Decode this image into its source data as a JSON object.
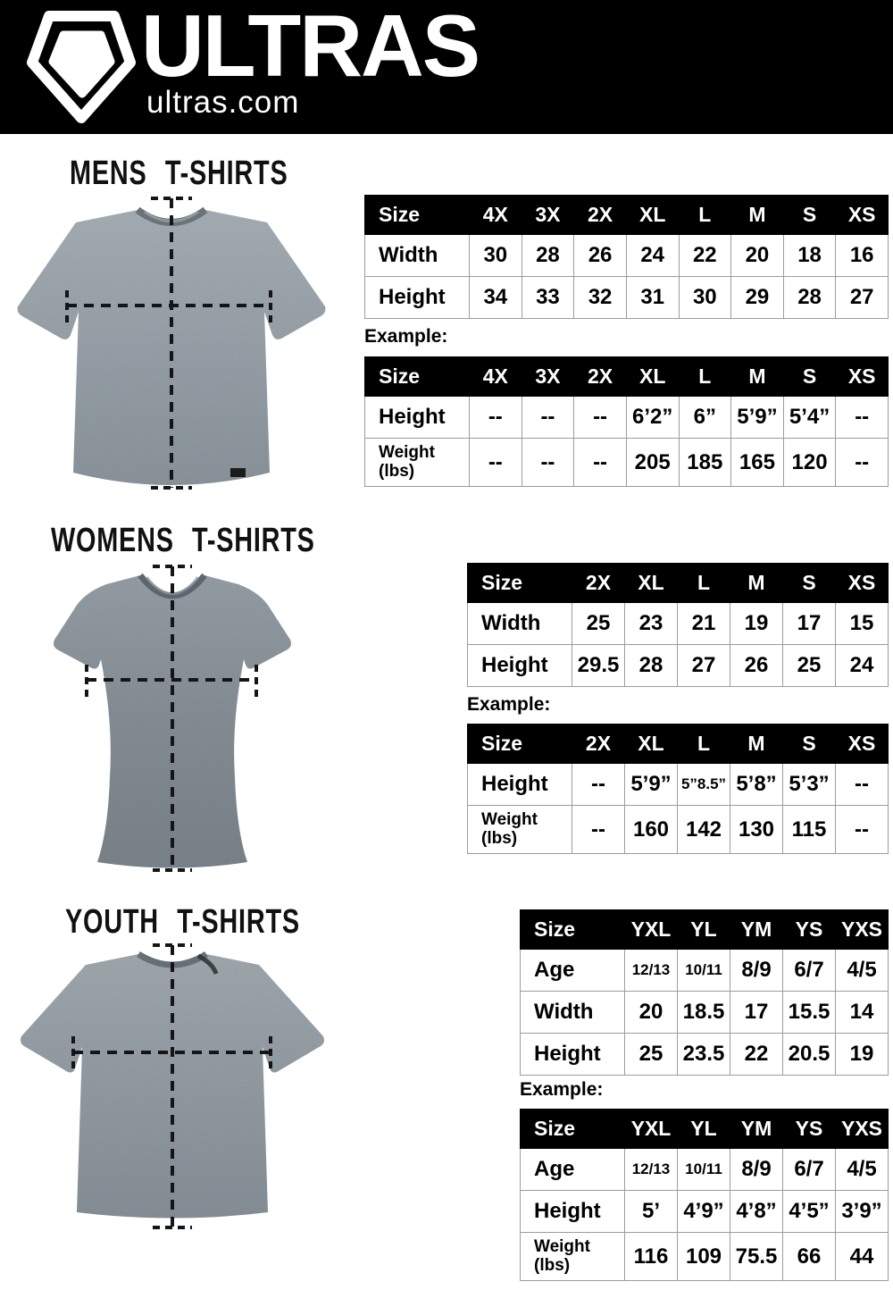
{
  "header": {
    "brand": "ULTRAS",
    "site": "ultras.com",
    "logo_icon": "pentagon-badge"
  },
  "colors": {
    "header_bg": "#000000",
    "table_header_bg": "#000000",
    "table_header_text": "#ffffff",
    "table_border": "#9c9c9c",
    "text": "#000000",
    "shirt_mens": "#8e98a0",
    "shirt_womens": "#79828a",
    "shirt_youth": "#858e96"
  },
  "sections": [
    {
      "id": "mens",
      "title": "MENS T-SHIRTS",
      "example_label": "Example:",
      "size_table": {
        "columns": [
          "Size",
          "4X",
          "3X",
          "2X",
          "XL",
          "L",
          "M",
          "S",
          "XS"
        ],
        "rows": [
          {
            "label": "Width",
            "values": [
              "30",
              "28",
              "26",
              "24",
              "22",
              "20",
              "18",
              "16"
            ]
          },
          {
            "label": "Height",
            "values": [
              "34",
              "33",
              "32",
              "31",
              "30",
              "29",
              "28",
              "27"
            ]
          }
        ]
      },
      "example_table": {
        "columns": [
          "Size",
          "4X",
          "3X",
          "2X",
          "XL",
          "L",
          "M",
          "S",
          "XS"
        ],
        "rows": [
          {
            "label": "Height",
            "values": [
              "--",
              "--",
              "--",
              "6’2”",
              "6”",
              "5’9”",
              "5’4”",
              "--"
            ]
          },
          {
            "label": "Weight\n(lbs)",
            "values": [
              "--",
              "--",
              "--",
              "205",
              "185",
              "165",
              "120",
              "--"
            ]
          }
        ]
      }
    },
    {
      "id": "womens",
      "title": "WOMENS T-SHIRTS",
      "example_label": "Example:",
      "size_table": {
        "columns": [
          "Size",
          "2X",
          "XL",
          "L",
          "M",
          "S",
          "XS"
        ],
        "rows": [
          {
            "label": "Width",
            "values": [
              "25",
              "23",
              "21",
              "19",
              "17",
              "15"
            ]
          },
          {
            "label": "Height",
            "values": [
              "29.5",
              "28",
              "27",
              "26",
              "25",
              "24"
            ]
          }
        ]
      },
      "example_table": {
        "columns": [
          "Size",
          "2X",
          "XL",
          "L",
          "M",
          "S",
          "XS"
        ],
        "rows": [
          {
            "label": "Height",
            "values": [
              "--",
              "5’9”",
              "5”8.5”",
              "5’8”",
              "5’3”",
              "--"
            ]
          },
          {
            "label": "Weight\n(lbs)",
            "values": [
              "--",
              "160",
              "142",
              "130",
              "115",
              "--"
            ]
          }
        ]
      }
    },
    {
      "id": "youth",
      "title": "YOUTH T-SHIRTS",
      "example_label": "Example:",
      "size_table": {
        "columns": [
          "Size",
          "YXL",
          "YL",
          "YM",
          "YS",
          "YXS"
        ],
        "rows": [
          {
            "label": "Age",
            "values": [
              "12/13",
              "10/11",
              "8/9",
              "6/7",
              "4/5"
            ]
          },
          {
            "label": "Width",
            "values": [
              "20",
              "18.5",
              "17",
              "15.5",
              "14"
            ]
          },
          {
            "label": "Height",
            "values": [
              "25",
              "23.5",
              "22",
              "20.5",
              "19"
            ]
          }
        ]
      },
      "example_table": {
        "columns": [
          "Size",
          "YXL",
          "YL",
          "YM",
          "YS",
          "YXS"
        ],
        "rows": [
          {
            "label": "Age",
            "values": [
              "12/13",
              "10/11",
              "8/9",
              "6/7",
              "4/5"
            ]
          },
          {
            "label": "Height",
            "values": [
              "5’",
              "4’9”",
              "4’8”",
              "4’5”",
              "3’9”"
            ]
          },
          {
            "label": "Weight\n(lbs)",
            "values": [
              "116",
              "109",
              "75.5",
              "66",
              "44"
            ]
          }
        ]
      }
    }
  ]
}
